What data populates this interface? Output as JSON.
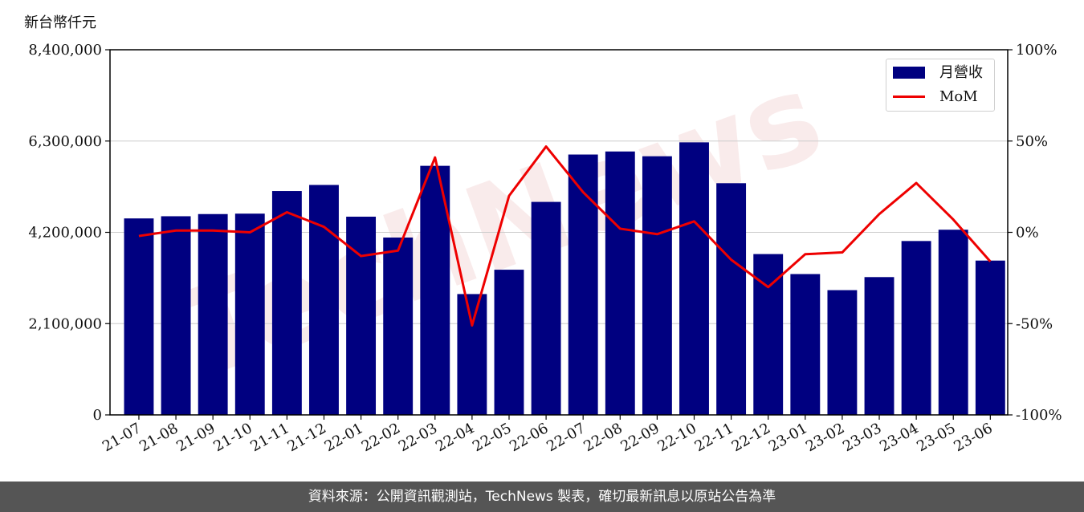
{
  "chart_data": {
    "type": "bar",
    "unit_label": "新台幣仟元",
    "categories": [
      "21-07",
      "21-08",
      "21-09",
      "21-10",
      "21-11",
      "21-12",
      "22-01",
      "22-02",
      "22-03",
      "22-04",
      "22-05",
      "22-06",
      "22-07",
      "22-08",
      "22-09",
      "22-10",
      "22-11",
      "22-12",
      "23-01",
      "23-02",
      "23-03",
      "23-04",
      "23-05",
      "23-06"
    ],
    "series": [
      {
        "name": "月營收",
        "kind": "bar",
        "axis": "left",
        "color": "#000080",
        "values": [
          4520000,
          4570000,
          4620000,
          4630000,
          5150000,
          5290000,
          4560000,
          4080000,
          5730000,
          2780000,
          3340000,
          4900000,
          5990000,
          6060000,
          5950000,
          6270000,
          5330000,
          3700000,
          3240000,
          2870000,
          3170000,
          4000000,
          4260000,
          3550000
        ]
      },
      {
        "name": "MoM",
        "kind": "line",
        "axis": "right",
        "color": "#ee0000",
        "values": [
          -2,
          1,
          1,
          0,
          11,
          3,
          -13,
          -10,
          41,
          -51,
          20,
          47,
          22,
          2,
          -1,
          6,
          -15,
          -30,
          -12,
          -11,
          10,
          27,
          7,
          -16
        ]
      }
    ],
    "y_left": {
      "ylim": [
        0,
        8400000
      ],
      "ticks": [
        "0",
        "2,100,000",
        "4,200,000",
        "6,300,000",
        "8,400,000"
      ]
    },
    "y_right": {
      "ylim": [
        -100,
        100
      ],
      "ticks": [
        "-100%",
        "-50%",
        "0%",
        "50%",
        "100%"
      ]
    },
    "grid": "horizontal",
    "legend_position": "top-right"
  },
  "watermark": "TechNews",
  "footer": {
    "text": "資料來源：公開資訊觀測站，TechNews 製表，確切最新訊息以原站公告為準"
  }
}
